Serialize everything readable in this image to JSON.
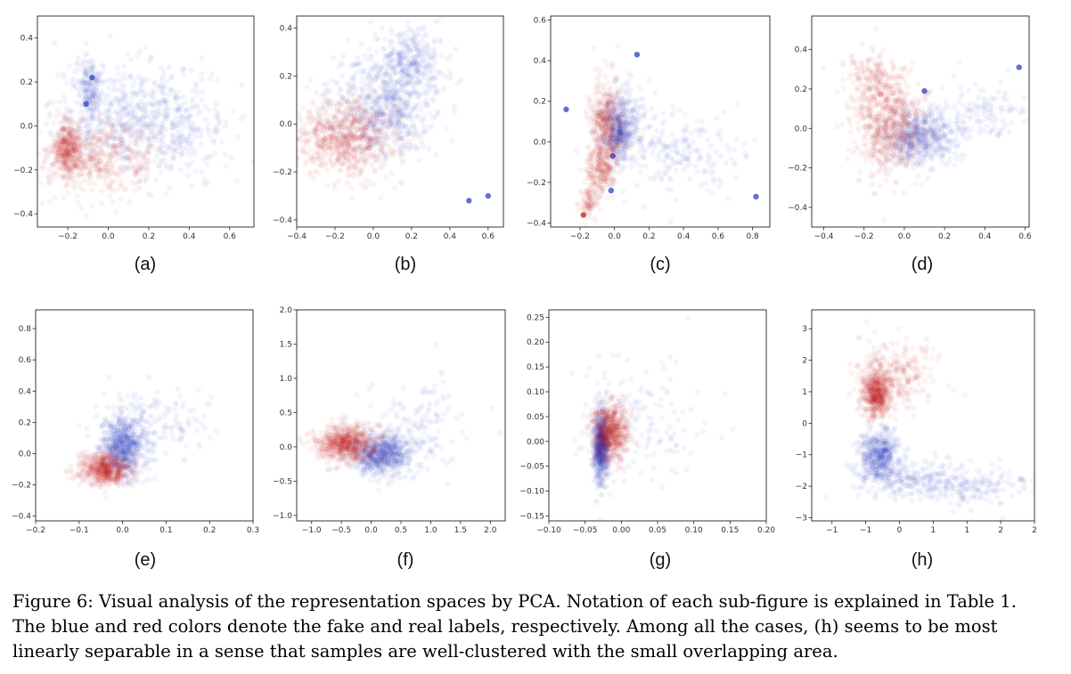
{
  "chart_data": [
    {
      "type": "scatter",
      "label": "(a)",
      "xlim": [
        -0.35,
        0.72
      ],
      "ylim": [
        -0.46,
        0.5
      ],
      "xticks": [
        -0.2,
        0.0,
        0.2,
        0.4,
        0.6
      ],
      "yticks": [
        -0.4,
        -0.2,
        0.0,
        0.2,
        0.4
      ],
      "tick_decimals": 1,
      "series": [
        {
          "color": "#3040c0",
          "clusters": [
            {
              "cx": 0.12,
              "cy": 0.05,
              "sx": 0.2,
              "sy": 0.12,
              "n": 500
            },
            {
              "cx": -0.09,
              "cy": 0.18,
              "sx": 0.035,
              "sy": 0.07,
              "n": 180
            },
            {
              "cx": 0.3,
              "cy": -0.05,
              "sx": 0.15,
              "sy": 0.1,
              "n": 200
            }
          ],
          "highlight": [
            [
              -0.11,
              0.1
            ],
            [
              -0.08,
              0.22
            ]
          ]
        },
        {
          "color": "#c01818",
          "clusters": [
            {
              "cx": -0.2,
              "cy": -0.1,
              "sx": 0.035,
              "sy": 0.06,
              "n": 350
            },
            {
              "cx": -0.05,
              "cy": -0.15,
              "sx": 0.15,
              "sy": 0.08,
              "n": 450
            }
          ],
          "highlight": []
        }
      ]
    },
    {
      "type": "scatter",
      "label": "(b)",
      "xlim": [
        -0.4,
        0.68
      ],
      "ylim": [
        -0.43,
        0.45
      ],
      "xticks": [
        -0.4,
        -0.2,
        0.0,
        0.2,
        0.4,
        0.6
      ],
      "yticks": [
        -0.4,
        -0.2,
        0.0,
        0.2,
        0.4
      ],
      "tick_decimals": 1,
      "series": [
        {
          "color": "#3040c0",
          "clusters": [
            {
              "cx": 0.05,
              "cy": 0.08,
              "sx": 0.14,
              "sy": 0.11,
              "n": 700
            },
            {
              "cx": 0.2,
              "cy": 0.27,
              "sx": 0.08,
              "sy": 0.07,
              "n": 250
            }
          ],
          "highlight": [
            [
              0.5,
              -0.32
            ],
            [
              0.6,
              -0.3
            ]
          ]
        },
        {
          "color": "#c01818",
          "clusters": [
            {
              "cx": -0.15,
              "cy": -0.06,
              "sx": 0.13,
              "sy": 0.08,
              "n": 700
            }
          ],
          "highlight": []
        }
      ]
    },
    {
      "type": "scatter",
      "label": "(c)",
      "xlim": [
        -0.37,
        0.9
      ],
      "ylim": [
        -0.42,
        0.62
      ],
      "xticks": [
        -0.2,
        0.0,
        0.2,
        0.4,
        0.6,
        0.8
      ],
      "yticks": [
        -0.4,
        -0.2,
        0.0,
        0.2,
        0.4,
        0.6
      ],
      "tick_decimals": 1,
      "series": [
        {
          "color": "#3040c0",
          "clusters": [
            {
              "cx": 0.02,
              "cy": 0.05,
              "sx": 0.04,
              "sy": 0.08,
              "n": 400
            },
            {
              "cx": 0.35,
              "cy": -0.05,
              "sx": 0.2,
              "sy": 0.1,
              "n": 200
            },
            {
              "cx": 0.08,
              "cy": 0.1,
              "sx": 0.07,
              "sy": 0.1,
              "n": 150
            }
          ],
          "highlight": [
            [
              -0.01,
              -0.07
            ],
            [
              0.82,
              -0.27
            ],
            [
              0.13,
              0.43
            ],
            [
              -0.02,
              -0.24
            ],
            [
              -0.28,
              0.16
            ]
          ]
        },
        {
          "color": "#c01818",
          "clusters": [
            {
              "cx": -0.05,
              "cy": 0.08,
              "sx": 0.05,
              "sy": 0.12,
              "n": 450
            },
            {
              "cx": -0.08,
              "cy": -0.15,
              "sx": 0.04,
              "sy": 0.06,
              "n": 180
            },
            {
              "cx": -0.15,
              "cy": -0.3,
              "sx": 0.025,
              "sy": 0.04,
              "n": 80
            }
          ],
          "highlight": [
            [
              -0.18,
              -0.36
            ]
          ]
        }
      ]
    },
    {
      "type": "scatter",
      "label": "(d)",
      "xlim": [
        -0.46,
        0.62
      ],
      "ylim": [
        -0.5,
        0.57
      ],
      "xticks": [
        -0.4,
        -0.2,
        0.0,
        0.2,
        0.4,
        0.6
      ],
      "yticks": [
        -0.4,
        -0.2,
        0.0,
        0.2,
        0.4
      ],
      "tick_decimals": 1,
      "series": [
        {
          "color": "#3040c0",
          "clusters": [
            {
              "cx": 0.08,
              "cy": -0.05,
              "sx": 0.09,
              "sy": 0.07,
              "n": 550
            },
            {
              "cx": 0.38,
              "cy": 0.08,
              "sx": 0.12,
              "sy": 0.08,
              "n": 120
            }
          ],
          "highlight": [
            [
              0.1,
              0.19
            ],
            [
              0.57,
              0.31
            ]
          ]
        },
        {
          "color": "#c01818",
          "clusters": [
            {
              "cx": -0.08,
              "cy": 0.02,
              "sx": 0.09,
              "sy": 0.13,
              "n": 650
            },
            {
              "cx": -0.15,
              "cy": 0.25,
              "sx": 0.07,
              "sy": 0.08,
              "n": 150
            }
          ],
          "highlight": []
        }
      ]
    },
    {
      "type": "scatter",
      "label": "(e)",
      "xlim": [
        -0.2,
        0.3
      ],
      "ylim": [
        -0.43,
        0.92
      ],
      "xticks": [
        -0.2,
        -0.1,
        0.0,
        0.1,
        0.2,
        0.3
      ],
      "yticks": [
        -0.4,
        -0.2,
        0.0,
        0.2,
        0.4,
        0.6,
        0.8
      ],
      "tick_decimals": 1,
      "series": [
        {
          "color": "#3040c0",
          "clusters": [
            {
              "cx": 0.0,
              "cy": 0.05,
              "sx": 0.025,
              "sy": 0.1,
              "n": 700
            },
            {
              "cx": 0.07,
              "cy": 0.2,
              "sx": 0.06,
              "sy": 0.12,
              "n": 150
            }
          ],
          "highlight": []
        },
        {
          "color": "#c01818",
          "clusters": [
            {
              "cx": -0.04,
              "cy": -0.1,
              "sx": 0.03,
              "sy": 0.05,
              "n": 600
            }
          ],
          "highlight": []
        }
      ]
    },
    {
      "type": "scatter",
      "label": "(f)",
      "xlim": [
        -1.25,
        2.25
      ],
      "ylim": [
        -1.08,
        2.0
      ],
      "xticks": [
        -1.0,
        -0.5,
        0.0,
        0.5,
        1.0,
        1.5,
        2.0
      ],
      "yticks": [
        -1.0,
        -0.5,
        0.0,
        0.5,
        1.0,
        1.5,
        2.0
      ],
      "tick_decimals": 1,
      "series": [
        {
          "color": "#3040c0",
          "clusters": [
            {
              "cx": 0.15,
              "cy": -0.1,
              "sx": 0.25,
              "sy": 0.15,
              "n": 700
            },
            {
              "cx": 0.8,
              "cy": 0.3,
              "sx": 0.45,
              "sy": 0.35,
              "n": 150
            }
          ],
          "highlight": []
        },
        {
          "color": "#c01818",
          "clusters": [
            {
              "cx": -0.4,
              "cy": 0.05,
              "sx": 0.25,
              "sy": 0.13,
              "n": 700
            }
          ],
          "highlight": []
        }
      ]
    },
    {
      "type": "scatter",
      "label": "(g)",
      "xlim": [
        -0.1,
        0.2
      ],
      "ylim": [
        -0.16,
        0.265
      ],
      "xticks": [
        -0.1,
        -0.05,
        0.0,
        0.05,
        0.1,
        0.15,
        0.2
      ],
      "yticks": [
        -0.15,
        -0.1,
        -0.05,
        0.0,
        0.05,
        0.1,
        0.15,
        0.2,
        0.25
      ],
      "tick_decimals": 2,
      "series": [
        {
          "color": "#3040c0",
          "clusters": [
            {
              "cx": -0.028,
              "cy": -0.01,
              "sx": 0.005,
              "sy": 0.035,
              "n": 700
            },
            {
              "cx": 0.03,
              "cy": 0.05,
              "sx": 0.05,
              "sy": 0.06,
              "n": 150
            }
          ],
          "highlight": []
        },
        {
          "color": "#c01818",
          "clusters": [
            {
              "cx": -0.015,
              "cy": 0.02,
              "sx": 0.012,
              "sy": 0.03,
              "n": 650
            }
          ],
          "highlight": []
        }
      ]
    },
    {
      "type": "scatter",
      "label": "(h)",
      "xlim": [
        -1.3,
        2.0
      ],
      "ylim": [
        -3.1,
        3.6
      ],
      "xticks": [
        -1.0,
        -0.5,
        0.0,
        0.5,
        1.0,
        1.5,
        2.0
      ],
      "yticks": [
        -3,
        -2,
        -1,
        0,
        1,
        2,
        3
      ],
      "tick_decimals": 0,
      "series": [
        {
          "color": "#3040c0",
          "clusters": [
            {
              "cx": -0.3,
              "cy": -1.0,
              "sx": 0.15,
              "sy": 0.4,
              "n": 500
            },
            {
              "cx": 0.3,
              "cy": -1.8,
              "sx": 0.5,
              "sy": 0.35,
              "n": 300
            },
            {
              "cx": 1.2,
              "cy": -2.1,
              "sx": 0.35,
              "sy": 0.3,
              "n": 100
            }
          ],
          "highlight": []
        },
        {
          "color": "#c01818",
          "clusters": [
            {
              "cx": -0.35,
              "cy": 0.9,
              "sx": 0.1,
              "sy": 0.35,
              "n": 500
            },
            {
              "cx": -0.1,
              "cy": 1.5,
              "sx": 0.3,
              "sy": 0.6,
              "n": 300
            }
          ],
          "highlight": []
        }
      ]
    }
  ],
  "caption": [
    "Figure 6: Visual analysis of the representation spaces by PCA. Notation of each sub-figure is explained in Table 1.",
    "The blue and red colors denote the fake and real labels, respectively. Among all the cases, (h) seems to be most",
    "linearly separable in a sense that samples are well-clustered with the small overlapping area."
  ]
}
